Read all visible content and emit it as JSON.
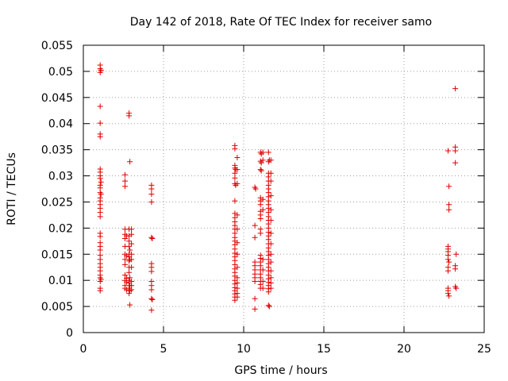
{
  "chart_data": {
    "type": "scatter",
    "title": "Day 142 of 2018, Rate Of TEC Index for receiver samo",
    "xlabel": "GPS time / hours",
    "ylabel": "ROTI / TECUs",
    "xlim": [
      0,
      25
    ],
    "ylim": [
      0,
      0.055
    ],
    "xticks": [
      0,
      5,
      10,
      15,
      20,
      25
    ],
    "xtick_labels": [
      "0",
      "5",
      "10",
      "15",
      "20",
      "25"
    ],
    "yticks": [
      0,
      0.005,
      0.01,
      0.015,
      0.02,
      0.025,
      0.03,
      0.035,
      0.04,
      0.045,
      0.05,
      0.055
    ],
    "ytick_labels": [
      "0",
      "0.005",
      "0.01",
      "0.015",
      "0.02",
      "0.025",
      "0.03",
      "0.035",
      "0.04",
      "0.045",
      "0.05",
      "0.055"
    ],
    "grid": true,
    "marker": "+",
    "marker_color": "#e00000",
    "series": [
      {
        "name": "ROTI",
        "points": [
          [
            1.05,
            0.0512
          ],
          [
            1.05,
            0.0505
          ],
          [
            1.1,
            0.0502
          ],
          [
            1.05,
            0.0498
          ],
          [
            1.05,
            0.0433
          ],
          [
            1.05,
            0.0401
          ],
          [
            1.05,
            0.038
          ],
          [
            1.05,
            0.0375
          ],
          [
            1.05,
            0.0313
          ],
          [
            1.05,
            0.0307
          ],
          [
            1.05,
            0.03
          ],
          [
            1.05,
            0.0295
          ],
          [
            1.1,
            0.0288
          ],
          [
            1.05,
            0.0282
          ],
          [
            1.05,
            0.0277
          ],
          [
            1.05,
            0.0268
          ],
          [
            1.1,
            0.0265
          ],
          [
            1.05,
            0.0258
          ],
          [
            1.05,
            0.0252
          ],
          [
            1.05,
            0.0245
          ],
          [
            1.05,
            0.0238
          ],
          [
            1.05,
            0.023
          ],
          [
            1.05,
            0.0222
          ],
          [
            1.05,
            0.019
          ],
          [
            1.05,
            0.0184
          ],
          [
            1.05,
            0.0172
          ],
          [
            1.05,
            0.0165
          ],
          [
            1.05,
            0.0158
          ],
          [
            1.05,
            0.0148
          ],
          [
            1.05,
            0.014
          ],
          [
            1.05,
            0.0132
          ],
          [
            1.05,
            0.0125
          ],
          [
            1.05,
            0.0118
          ],
          [
            1.05,
            0.011
          ],
          [
            1.05,
            0.0105
          ],
          [
            1.1,
            0.0102
          ],
          [
            1.05,
            0.0098
          ],
          [
            1.05,
            0.0085
          ],
          [
            1.05,
            0.008
          ],
          [
            2.6,
            0.0302
          ],
          [
            2.6,
            0.029
          ],
          [
            2.6,
            0.028
          ],
          [
            2.6,
            0.0198
          ],
          [
            2.6,
            0.0188
          ],
          [
            2.7,
            0.0185
          ],
          [
            2.6,
            0.018
          ],
          [
            2.6,
            0.0165
          ],
          [
            2.6,
            0.015
          ],
          [
            2.7,
            0.0147
          ],
          [
            2.6,
            0.014
          ],
          [
            2.6,
            0.013
          ],
          [
            2.6,
            0.011
          ],
          [
            2.7,
            0.0104
          ],
          [
            2.6,
            0.01
          ],
          [
            2.7,
            0.0097
          ],
          [
            2.6,
            0.009
          ],
          [
            2.6,
            0.0085
          ],
          [
            2.7,
            0.0082
          ],
          [
            2.85,
            0.042
          ],
          [
            2.85,
            0.0415
          ],
          [
            2.9,
            0.0327
          ],
          [
            2.85,
            0.0198
          ],
          [
            2.85,
            0.0185
          ],
          [
            2.85,
            0.0175
          ],
          [
            2.85,
            0.0165
          ],
          [
            2.9,
            0.0158
          ],
          [
            2.85,
            0.015
          ],
          [
            2.85,
            0.0145
          ],
          [
            2.9,
            0.014
          ],
          [
            2.85,
            0.0137
          ],
          [
            2.85,
            0.0125
          ],
          [
            2.85,
            0.0115
          ],
          [
            2.9,
            0.0105
          ],
          [
            2.85,
            0.01
          ],
          [
            2.85,
            0.0095
          ],
          [
            2.9,
            0.009
          ],
          [
            2.85,
            0.0085
          ],
          [
            2.9,
            0.008
          ],
          [
            2.85,
            0.0075
          ],
          [
            2.9,
            0.0053
          ],
          [
            3.0,
            0.0198
          ],
          [
            3.0,
            0.0188
          ],
          [
            3.0,
            0.017
          ],
          [
            3.0,
            0.015
          ],
          [
            3.0,
            0.014
          ],
          [
            3.0,
            0.0125
          ],
          [
            3.0,
            0.0098
          ],
          [
            3.0,
            0.009
          ],
          [
            3.0,
            0.0082
          ],
          [
            4.25,
            0.0282
          ],
          [
            4.25,
            0.0275
          ],
          [
            4.25,
            0.0265
          ],
          [
            4.25,
            0.025
          ],
          [
            4.25,
            0.0182
          ],
          [
            4.3,
            0.018
          ],
          [
            4.25,
            0.0132
          ],
          [
            4.25,
            0.0125
          ],
          [
            4.25,
            0.0117
          ],
          [
            4.25,
            0.0098
          ],
          [
            4.25,
            0.009
          ],
          [
            4.25,
            0.0082
          ],
          [
            4.25,
            0.0065
          ],
          [
            4.3,
            0.0063
          ],
          [
            4.25,
            0.0043
          ],
          [
            9.45,
            0.0358
          ],
          [
            9.45,
            0.0352
          ],
          [
            9.45,
            0.032
          ],
          [
            9.45,
            0.0315
          ],
          [
            9.5,
            0.0312
          ],
          [
            9.45,
            0.0305
          ],
          [
            9.45,
            0.0296
          ],
          [
            9.45,
            0.0285
          ],
          [
            9.5,
            0.0282
          ],
          [
            9.45,
            0.0252
          ],
          [
            9.45,
            0.0228
          ],
          [
            9.45,
            0.022
          ],
          [
            9.45,
            0.0212
          ],
          [
            9.45,
            0.0205
          ],
          [
            9.45,
            0.0198
          ],
          [
            9.45,
            0.019
          ],
          [
            9.45,
            0.0182
          ],
          [
            9.45,
            0.0175
          ],
          [
            9.45,
            0.0168
          ],
          [
            9.45,
            0.016
          ],
          [
            9.45,
            0.0152
          ],
          [
            9.45,
            0.0145
          ],
          [
            9.45,
            0.0138
          ],
          [
            9.45,
            0.013
          ],
          [
            9.45,
            0.0122
          ],
          [
            9.45,
            0.0115
          ],
          [
            9.45,
            0.0108
          ],
          [
            9.45,
            0.01
          ],
          [
            9.45,
            0.0093
          ],
          [
            9.45,
            0.0086
          ],
          [
            9.45,
            0.008
          ],
          [
            9.45,
            0.0074
          ],
          [
            9.45,
            0.0068
          ],
          [
            9.45,
            0.0062
          ],
          [
            9.6,
            0.0335
          ],
          [
            9.6,
            0.0312
          ],
          [
            9.6,
            0.0285
          ],
          [
            9.6,
            0.0225
          ],
          [
            9.6,
            0.0198
          ],
          [
            9.6,
            0.0172
          ],
          [
            9.6,
            0.015
          ],
          [
            9.6,
            0.0125
          ],
          [
            9.6,
            0.0105
          ],
          [
            9.6,
            0.0095
          ],
          [
            9.6,
            0.0085
          ],
          [
            9.6,
            0.0075
          ],
          [
            9.6,
            0.0068
          ],
          [
            10.7,
            0.0278
          ],
          [
            10.75,
            0.0275
          ],
          [
            10.7,
            0.0205
          ],
          [
            10.7,
            0.0182
          ],
          [
            10.7,
            0.0135
          ],
          [
            10.7,
            0.0128
          ],
          [
            10.7,
            0.012
          ],
          [
            10.7,
            0.0112
          ],
          [
            10.7,
            0.0105
          ],
          [
            10.7,
            0.0098
          ],
          [
            10.7,
            0.0065
          ],
          [
            10.7,
            0.0045
          ],
          [
            11.05,
            0.0345
          ],
          [
            11.1,
            0.0342
          ],
          [
            11.05,
            0.0328
          ],
          [
            11.1,
            0.0325
          ],
          [
            11.05,
            0.0312
          ],
          [
            11.1,
            0.031
          ],
          [
            11.05,
            0.0258
          ],
          [
            11.05,
            0.0252
          ],
          [
            11.05,
            0.0245
          ],
          [
            11.05,
            0.0232
          ],
          [
            11.05,
            0.0225
          ],
          [
            11.05,
            0.0218
          ],
          [
            11.05,
            0.0198
          ],
          [
            11.05,
            0.019
          ],
          [
            11.05,
            0.0148
          ],
          [
            11.05,
            0.0142
          ],
          [
            11.05,
            0.0135
          ],
          [
            11.05,
            0.0128
          ],
          [
            11.05,
            0.012
          ],
          [
            11.05,
            0.0112
          ],
          [
            11.05,
            0.0105
          ],
          [
            11.05,
            0.0098
          ],
          [
            11.05,
            0.0092
          ],
          [
            11.05,
            0.0085
          ],
          [
            11.2,
            0.0345
          ],
          [
            11.2,
            0.033
          ],
          [
            11.2,
            0.0255
          ],
          [
            11.2,
            0.0235
          ],
          [
            11.2,
            0.014
          ],
          [
            11.2,
            0.012
          ],
          [
            11.2,
            0.0098
          ],
          [
            11.2,
            0.0085
          ],
          [
            11.55,
            0.0345
          ],
          [
            11.6,
            0.033
          ],
          [
            11.55,
            0.0327
          ],
          [
            11.55,
            0.0305
          ],
          [
            11.55,
            0.0298
          ],
          [
            11.55,
            0.029
          ],
          [
            11.55,
            0.0282
          ],
          [
            11.55,
            0.0275
          ],
          [
            11.55,
            0.0268
          ],
          [
            11.55,
            0.026
          ],
          [
            11.55,
            0.0252
          ],
          [
            11.55,
            0.0245
          ],
          [
            11.55,
            0.0238
          ],
          [
            11.55,
            0.023
          ],
          [
            11.55,
            0.0222
          ],
          [
            11.55,
            0.0215
          ],
          [
            11.55,
            0.0208
          ],
          [
            11.55,
            0.02
          ],
          [
            11.55,
            0.0192
          ],
          [
            11.55,
            0.0185
          ],
          [
            11.55,
            0.0178
          ],
          [
            11.55,
            0.017
          ],
          [
            11.55,
            0.0162
          ],
          [
            11.55,
            0.0155
          ],
          [
            11.55,
            0.0148
          ],
          [
            11.55,
            0.014
          ],
          [
            11.55,
            0.0132
          ],
          [
            11.55,
            0.0125
          ],
          [
            11.55,
            0.0118
          ],
          [
            11.55,
            0.011
          ],
          [
            11.55,
            0.0103
          ],
          [
            11.55,
            0.0096
          ],
          [
            11.55,
            0.009
          ],
          [
            11.55,
            0.0084
          ],
          [
            11.55,
            0.0078
          ],
          [
            11.55,
            0.0052
          ],
          [
            11.6,
            0.005
          ],
          [
            11.7,
            0.033
          ],
          [
            11.7,
            0.0305
          ],
          [
            11.7,
            0.029
          ],
          [
            11.7,
            0.0262
          ],
          [
            11.7,
            0.0235
          ],
          [
            11.7,
            0.0215
          ],
          [
            11.7,
            0.019
          ],
          [
            11.7,
            0.017
          ],
          [
            11.7,
            0.015
          ],
          [
            11.7,
            0.0135
          ],
          [
            11.7,
            0.0118
          ],
          [
            11.7,
            0.0105
          ],
          [
            11.7,
            0.0095
          ],
          [
            11.7,
            0.0085
          ],
          [
            22.75,
            0.0348
          ],
          [
            22.8,
            0.028
          ],
          [
            22.8,
            0.0245
          ],
          [
            22.8,
            0.0235
          ],
          [
            22.75,
            0.0165
          ],
          [
            22.75,
            0.016
          ],
          [
            22.75,
            0.0155
          ],
          [
            22.75,
            0.0148
          ],
          [
            22.75,
            0.014
          ],
          [
            22.8,
            0.0135
          ],
          [
            22.75,
            0.0125
          ],
          [
            22.75,
            0.0118
          ],
          [
            22.75,
            0.0085
          ],
          [
            22.75,
            0.008
          ],
          [
            22.75,
            0.0075
          ],
          [
            22.8,
            0.007
          ],
          [
            23.2,
            0.0467
          ],
          [
            23.2,
            0.0355
          ],
          [
            23.2,
            0.0348
          ],
          [
            23.2,
            0.0325
          ],
          [
            23.25,
            0.015
          ],
          [
            23.2,
            0.0128
          ],
          [
            23.2,
            0.0122
          ],
          [
            23.2,
            0.0088
          ],
          [
            23.25,
            0.0085
          ]
        ]
      }
    ]
  }
}
